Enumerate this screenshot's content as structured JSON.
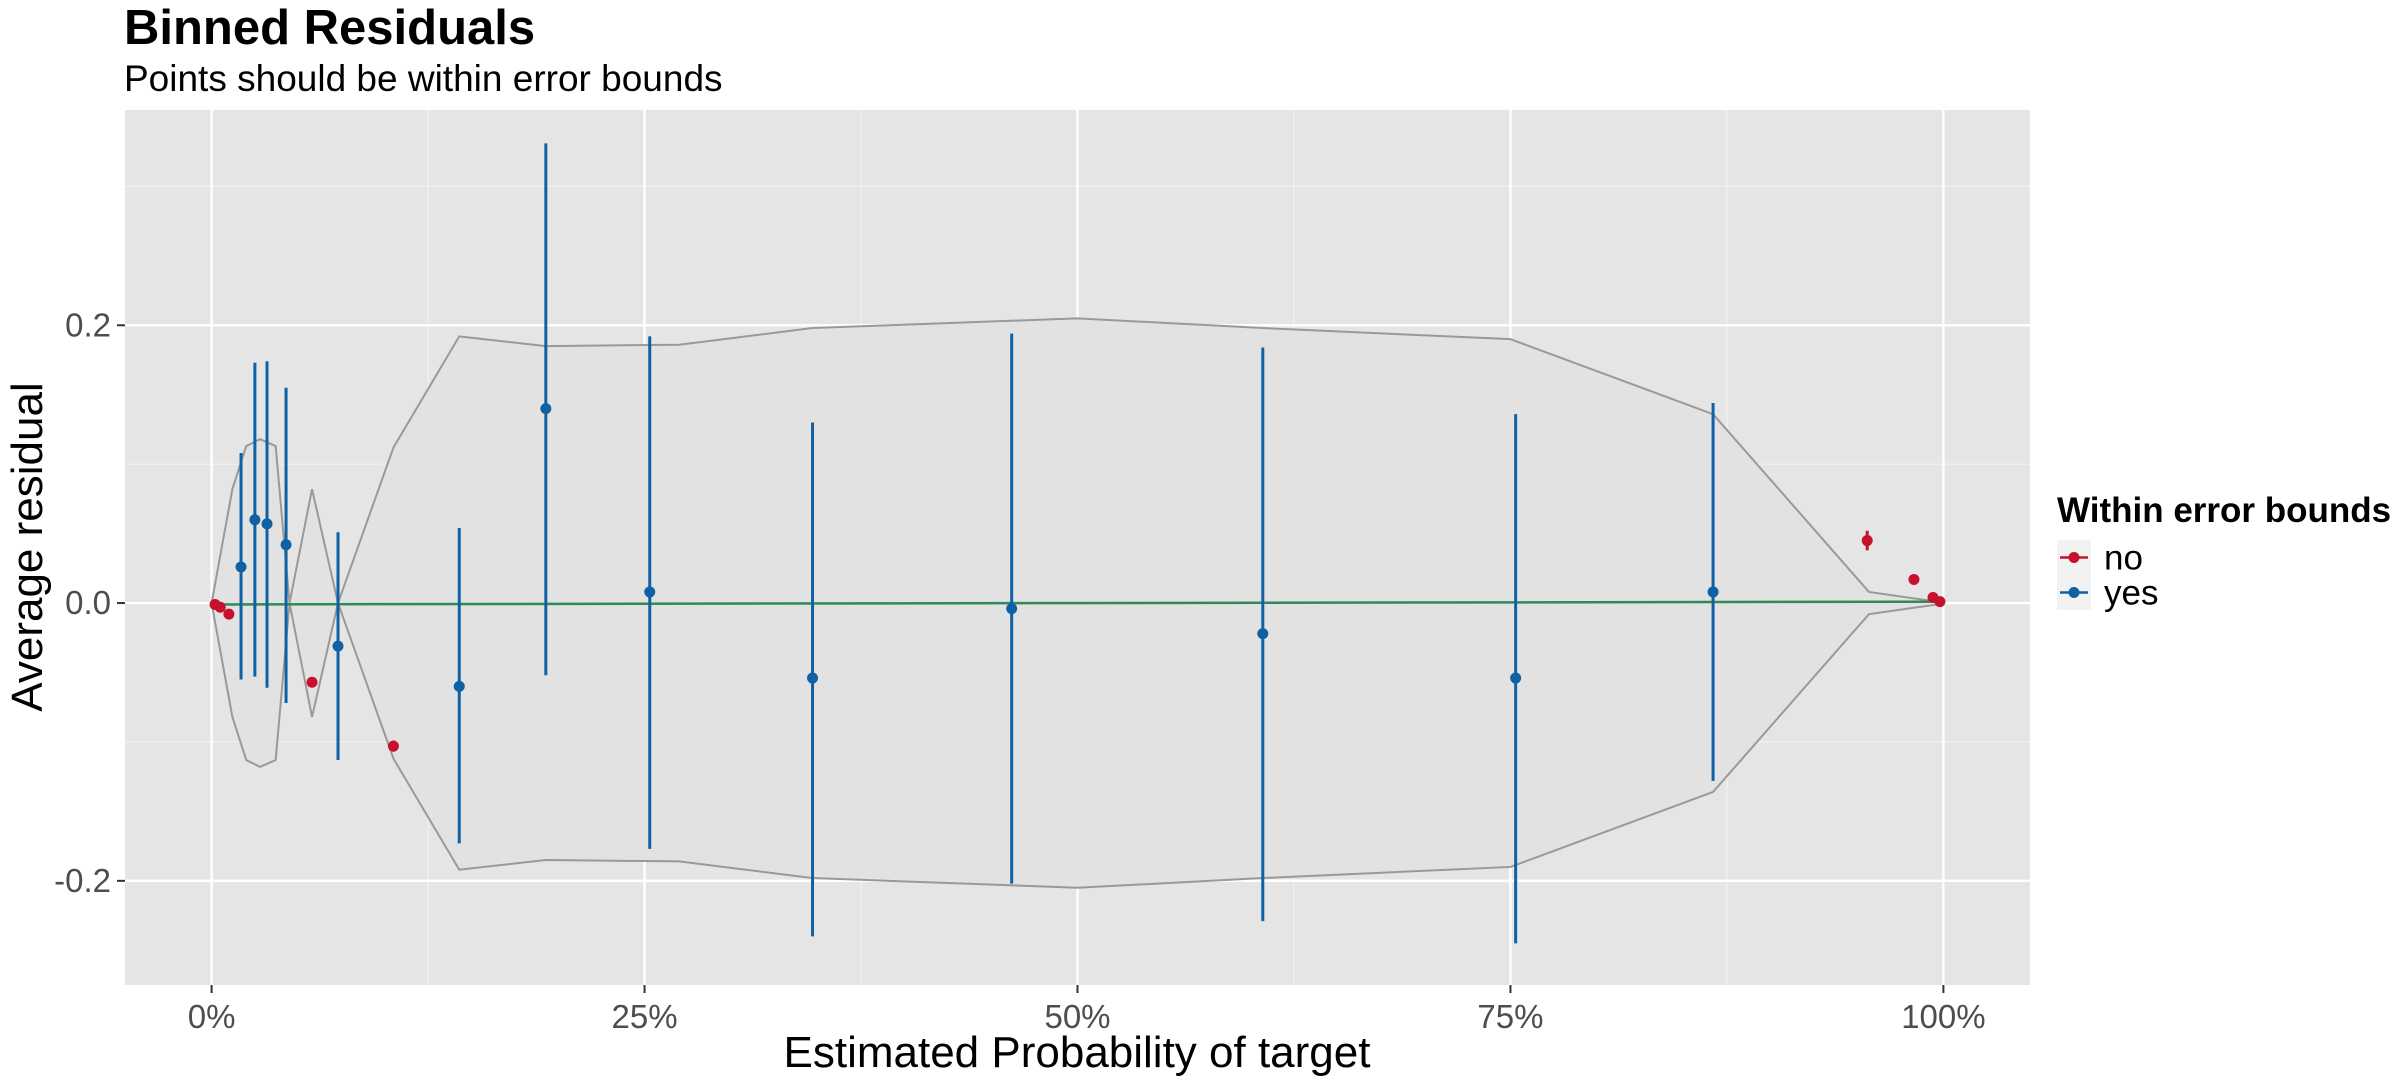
{
  "chart_data": {
    "type": "scatter",
    "title": "Binned Residuals",
    "subtitle": "Points should be within error bounds",
    "xlabel": "Estimated Probability of target",
    "ylabel": "Average residual",
    "xlim": [
      -0.05,
      1.05
    ],
    "ylim": [
      -0.275,
      0.355
    ],
    "x_ticks": [
      0,
      0.25,
      0.5,
      0.75,
      1.0
    ],
    "x_tick_labels": [
      "0%",
      "25%",
      "50%",
      "75%",
      "100%"
    ],
    "y_ticks": [
      -0.2,
      0.0,
      0.2
    ],
    "y_tick_labels": [
      "-0.2",
      "0.0",
      "0.2"
    ],
    "grid": true,
    "legend": {
      "title": "Within error bounds",
      "placement": "right",
      "entries": [
        {
          "label": "no",
          "color": "#C8102E"
        },
        {
          "label": "yes",
          "color": "#0F61A4"
        }
      ]
    },
    "colors": {
      "no": "#C8102E",
      "yes": "#0F61A4",
      "bounds": "#999999",
      "fit": "#2E8B57"
    },
    "error_bounds": {
      "x": [
        0.0,
        0.012,
        0.02,
        0.028,
        0.037,
        0.045,
        0.058,
        0.073,
        0.105,
        0.143,
        0.193,
        0.27,
        0.347,
        0.5,
        0.607,
        0.75,
        0.867,
        0.957,
        0.985,
        0.997,
        1.0
      ],
      "upper": [
        0.0,
        0.082,
        0.113,
        0.118,
        0.113,
        0.0,
        0.082,
        0.0,
        0.112,
        0.192,
        0.185,
        0.186,
        0.198,
        0.205,
        0.198,
        0.19,
        0.136,
        0.008,
        0.003,
        0.001,
        0.0
      ],
      "lower": [
        0.0,
        -0.082,
        -0.113,
        -0.118,
        -0.113,
        0.0,
        -0.082,
        0.0,
        -0.112,
        -0.192,
        -0.185,
        -0.186,
        -0.198,
        -0.205,
        -0.198,
        -0.19,
        -0.136,
        -0.008,
        -0.003,
        -0.001,
        0.0
      ]
    },
    "fit_line": {
      "x": [
        0.0,
        1.0
      ],
      "y": [
        -0.001,
        0.001
      ]
    },
    "series": [
      {
        "name": "no",
        "points": [
          {
            "x": 0.002,
            "y": -0.001,
            "ymin": -0.002,
            "ymax": 0.0
          },
          {
            "x": 0.005,
            "y": -0.003,
            "ymin": -0.004,
            "ymax": -0.002
          },
          {
            "x": 0.01,
            "y": -0.008,
            "ymin": -0.009,
            "ymax": -0.007
          },
          {
            "x": 0.058,
            "y": -0.057,
            "ymin": -0.059,
            "ymax": -0.055
          },
          {
            "x": 0.105,
            "y": -0.103,
            "ymin": -0.107,
            "ymax": -0.099
          },
          {
            "x": 0.956,
            "y": 0.045,
            "ymin": 0.038,
            "ymax": 0.052
          },
          {
            "x": 0.983,
            "y": 0.017,
            "ymin": 0.015,
            "ymax": 0.019
          },
          {
            "x": 0.994,
            "y": 0.004,
            "ymin": 0.003,
            "ymax": 0.005
          },
          {
            "x": 0.998,
            "y": 0.001,
            "ymin": 0.0,
            "ymax": 0.002
          }
        ]
      },
      {
        "name": "yes",
        "points": [
          {
            "x": 0.017,
            "y": 0.026,
            "ymin": -0.055,
            "ymax": 0.108
          },
          {
            "x": 0.025,
            "y": 0.06,
            "ymin": -0.053,
            "ymax": 0.173
          },
          {
            "x": 0.032,
            "y": 0.057,
            "ymin": -0.061,
            "ymax": 0.174
          },
          {
            "x": 0.043,
            "y": 0.042,
            "ymin": -0.072,
            "ymax": 0.155
          },
          {
            "x": 0.073,
            "y": -0.031,
            "ymin": -0.113,
            "ymax": 0.051
          },
          {
            "x": 0.143,
            "y": -0.06,
            "ymin": -0.173,
            "ymax": 0.054
          },
          {
            "x": 0.193,
            "y": 0.14,
            "ymin": -0.052,
            "ymax": 0.331
          },
          {
            "x": 0.253,
            "y": 0.008,
            "ymin": -0.177,
            "ymax": 0.192
          },
          {
            "x": 0.347,
            "y": -0.054,
            "ymin": -0.24,
            "ymax": 0.13
          },
          {
            "x": 0.462,
            "y": -0.004,
            "ymin": -0.202,
            "ymax": 0.194
          },
          {
            "x": 0.607,
            "y": -0.022,
            "ymin": -0.229,
            "ymax": 0.184
          },
          {
            "x": 0.753,
            "y": -0.054,
            "ymin": -0.245,
            "ymax": 0.136
          },
          {
            "x": 0.867,
            "y": 0.008,
            "ymin": -0.128,
            "ymax": 0.144
          }
        ]
      }
    ]
  }
}
